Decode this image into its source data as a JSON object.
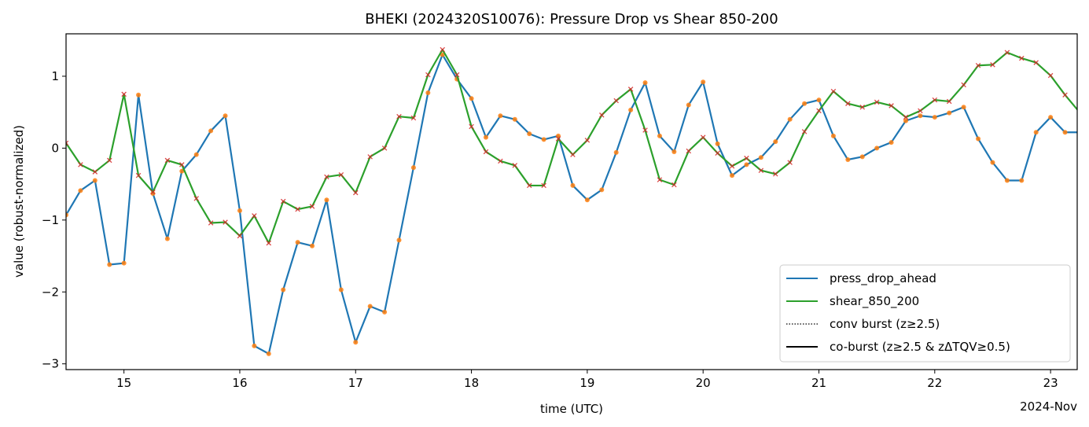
{
  "chart_data": {
    "type": "line",
    "title": "BHEKI (2024320S10076): Pressure Drop vs Shear 850-200",
    "xlabel": "time (UTC)",
    "ylabel": "value (robust-normalized)",
    "x_offset_label": "2024-Nov",
    "xlim": [
      14.5,
      23.23
    ],
    "ylim": [
      -3.08,
      1.59
    ],
    "x_ticks": [
      15,
      16,
      17,
      18,
      19,
      20,
      21,
      22,
      23
    ],
    "y_ticks": [
      1,
      0,
      -1,
      -2,
      -3
    ],
    "y_tick_labels": [
      "1",
      "0",
      "−1",
      "−2",
      "−3"
    ],
    "x_start": 14.5,
    "x_step_days": 0.125,
    "series": [
      {
        "name": "press_drop_ahead",
        "color": "#1f77b4",
        "marker": "dot",
        "marker_color": "#ff7f0e",
        "values": [
          -0.93,
          -0.59,
          -0.45,
          -1.62,
          -1.6,
          0.74,
          -0.63,
          -1.26,
          -0.32,
          -0.09,
          0.24,
          0.45,
          -0.87,
          -2.75,
          -2.86,
          -1.97,
          -1.31,
          -1.36,
          -0.72,
          -1.97,
          -2.7,
          -2.2,
          -2.28,
          -1.28,
          -0.27,
          0.77,
          1.3,
          0.96,
          0.69,
          0.15,
          0.45,
          0.4,
          0.2,
          0.12,
          0.17,
          -0.52,
          -0.72,
          -0.58,
          -0.06,
          0.53,
          0.91,
          0.17,
          -0.05,
          0.6,
          0.92,
          0.06,
          -0.38,
          -0.23,
          -0.13,
          0.09,
          0.4,
          0.62,
          0.67,
          0.17,
          -0.16,
          -0.12,
          0.0,
          0.08,
          0.38,
          0.45,
          0.43,
          0.49,
          0.57,
          0.13,
          -0.2,
          -0.45,
          -0.45,
          0.22,
          0.43,
          0.22,
          0.22
        ]
      },
      {
        "name": "shear_850_200",
        "color": "#2ca02c",
        "marker": "x",
        "marker_color": "#d62728",
        "values": [
          0.07,
          -0.23,
          -0.33,
          -0.17,
          0.75,
          -0.38,
          -0.61,
          -0.17,
          -0.23,
          -0.7,
          -1.04,
          -1.03,
          -1.22,
          -0.94,
          -1.32,
          -0.74,
          -0.85,
          -0.81,
          -0.4,
          -0.37,
          -0.62,
          -0.12,
          0.0,
          0.44,
          0.42,
          1.02,
          1.37,
          1.02,
          0.3,
          -0.05,
          -0.18,
          -0.24,
          -0.52,
          -0.52,
          0.13,
          -0.09,
          0.11,
          0.46,
          0.66,
          0.82,
          0.25,
          -0.44,
          -0.51,
          -0.04,
          0.15,
          -0.07,
          -0.25,
          -0.14,
          -0.31,
          -0.36,
          -0.2,
          0.23,
          0.52,
          0.79,
          0.62,
          0.57,
          0.64,
          0.59,
          0.43,
          0.52,
          0.67,
          0.65,
          0.88,
          1.15,
          1.16,
          1.33,
          1.25,
          1.19,
          1.01,
          0.74,
          0.5
        ]
      }
    ],
    "legend": {
      "placement": "lower-right",
      "entries": [
        {
          "label": "press_drop_ahead",
          "style": "solid",
          "color": "#1f77b4"
        },
        {
          "label": "shear_850_200",
          "style": "solid",
          "color": "#2ca02c"
        },
        {
          "label": "conv burst (z≥2.5)",
          "style": "dotted",
          "color": "#000000"
        },
        {
          "label": "co-burst (z≥2.5 & zΔTQV≥0.5)",
          "style": "solid",
          "color": "#000000"
        }
      ]
    }
  }
}
